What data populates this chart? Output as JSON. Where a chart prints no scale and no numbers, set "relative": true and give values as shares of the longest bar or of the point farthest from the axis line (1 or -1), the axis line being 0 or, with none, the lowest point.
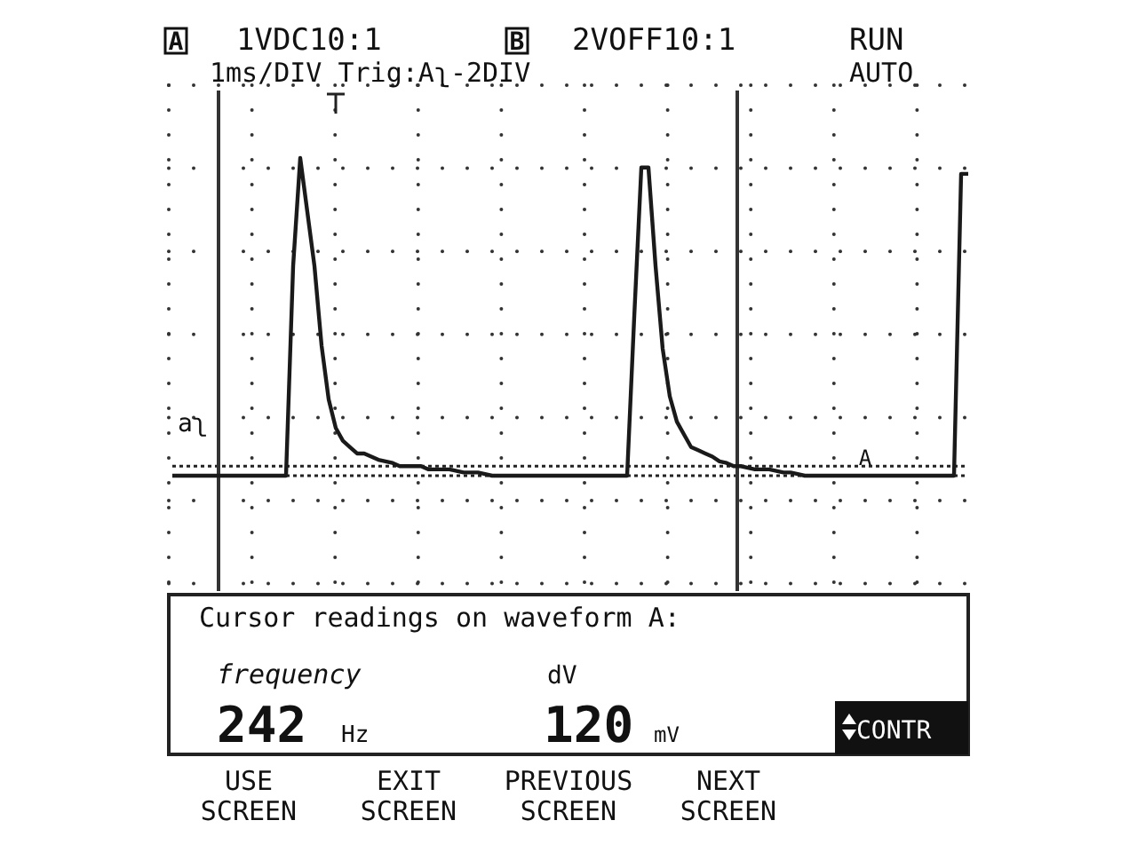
{
  "chart_data": {
    "type": "line",
    "relative": true,
    "grid": true,
    "color": "#1a1a1a",
    "line_style": "solid",
    "marker": "none",
    "categories": [
      null,
      null,
      null,
      null,
      null,
      null,
      null,
      null,
      null,
      null,
      null,
      null,
      null,
      null,
      null,
      null,
      null,
      null,
      null,
      null,
      null,
      null,
      null,
      null,
      null,
      null,
      null,
      null,
      null,
      null,
      null,
      null,
      null,
      null,
      null,
      null,
      null,
      null,
      null,
      null,
      null,
      null,
      null,
      null,
      null,
      null,
      null,
      null,
      null,
      null,
      null,
      null,
      null,
      null,
      null,
      null,
      null,
      null,
      null,
      null,
      null,
      null,
      null,
      null,
      null,
      null,
      null,
      null,
      null,
      null,
      null,
      null,
      null,
      null,
      null,
      null,
      null,
      null,
      null,
      null,
      null,
      null,
      null,
      null,
      null,
      null,
      null,
      null,
      null,
      null,
      null,
      null,
      null,
      null,
      null,
      null,
      null,
      null,
      null,
      null,
      null,
      null,
      null,
      null,
      null,
      null,
      null,
      null,
      null,
      null,
      null,
      null,
      null
    ],
    "values": [
      0,
      0,
      0,
      0,
      0,
      0,
      0,
      0,
      0,
      0,
      0,
      0,
      0,
      0,
      0,
      0,
      0,
      0.66,
      1,
      0.83,
      0.66,
      0.41,
      0.24,
      0.15,
      0.11,
      0.09,
      0.07,
      0.07,
      0.06,
      0.05,
      0.045,
      0.04,
      0.03,
      0.03,
      0.03,
      0.03,
      0.02,
      0.02,
      0.02,
      0.02,
      0.015,
      0.01,
      0.01,
      0.01,
      0.005,
      0,
      0,
      0,
      0,
      0,
      0,
      0,
      0,
      0,
      0,
      0,
      0,
      0,
      0,
      0,
      0,
      0,
      0,
      0,
      0,
      0.5,
      0.97,
      0.97,
      0.66,
      0.4,
      0.25,
      0.17,
      0.13,
      0.09,
      0.08,
      0.07,
      0.06,
      0.045,
      0.04,
      0.03,
      0.03,
      0.025,
      0.02,
      0.02,
      0.02,
      0.015,
      0.01,
      0.01,
      0.005,
      0,
      0,
      0,
      0,
      0,
      0,
      0,
      0,
      0,
      0,
      0,
      0,
      0,
      0,
      0,
      0,
      0,
      0,
      0,
      0,
      0,
      0,
      0.95,
      0.95
    ],
    "ref_lines": [
      {
        "axis": "y",
        "value": 0.03,
        "line_style": "dotted"
      },
      {
        "axis": "y",
        "value": 0,
        "line_style": "dotted"
      }
    ],
    "annotations": [
      "A",
      "1VDC10:1",
      "B",
      "2VOFF10:1",
      "RUN",
      "1ms/DIV Trig:Aʅ-2DIV",
      "AUTO",
      "aʅ",
      "A",
      "Cursor readings on waveform A:",
      "frequency",
      "242",
      "Hz",
      "dV",
      "120",
      "mV",
      "CONTR",
      "USE SCREEN",
      "EXIT SCREEN",
      "PREVIOUS SCREEN",
      "NEXT SCREEN"
    ]
  }
}
